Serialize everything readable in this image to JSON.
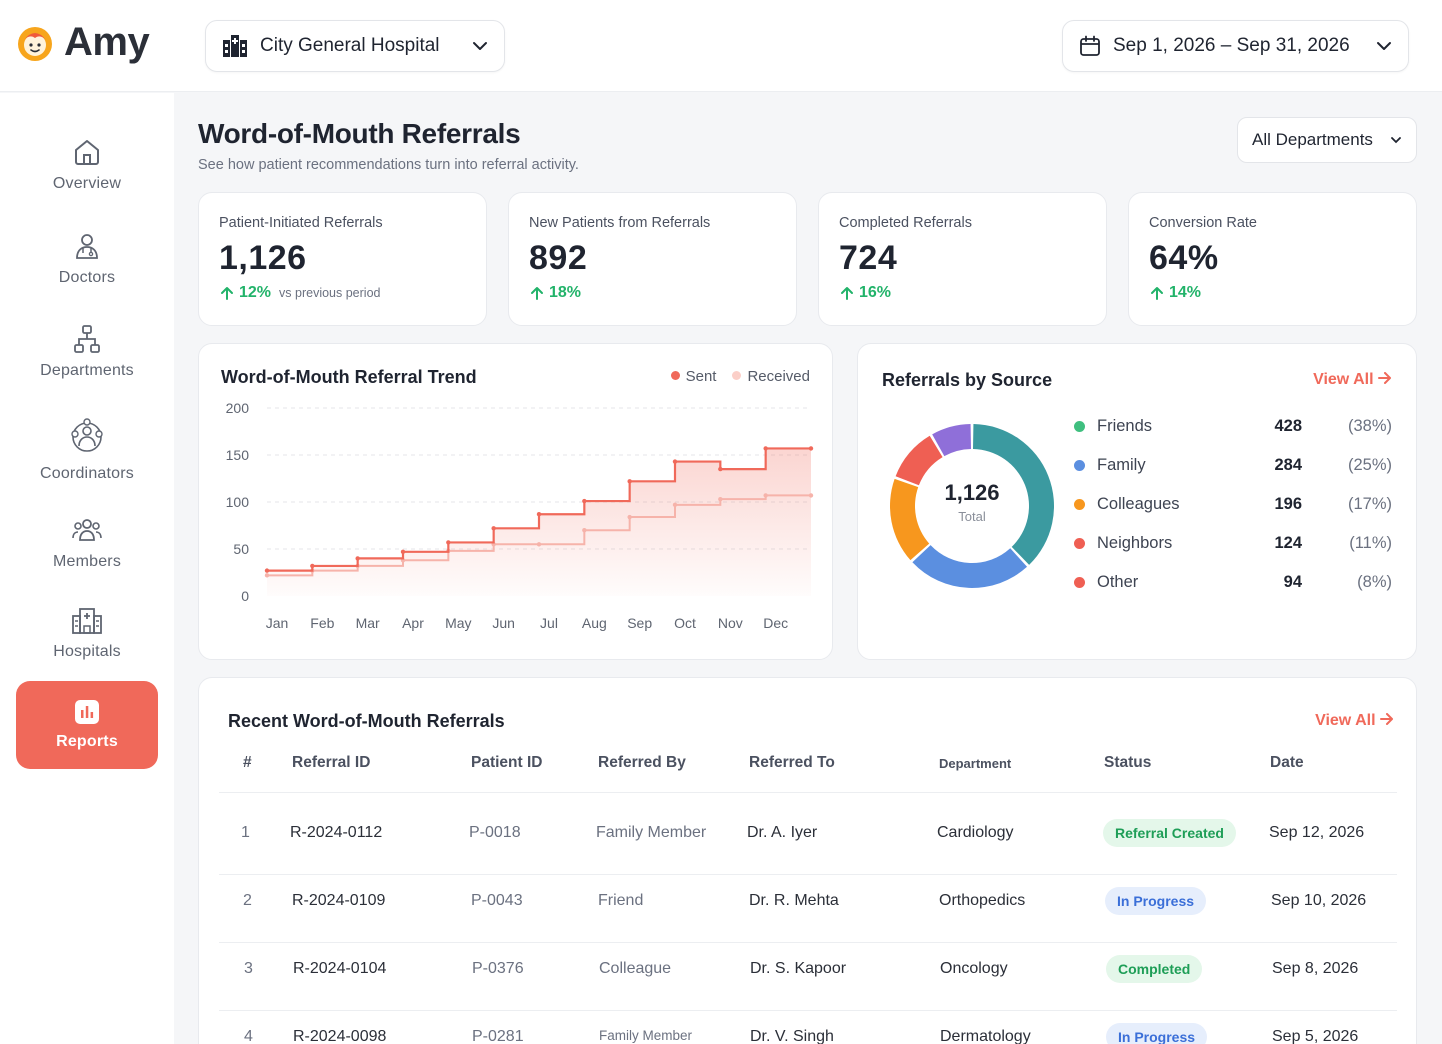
{
  "app": {
    "name": "Amy"
  },
  "header": {
    "hospital": "City General Hospital",
    "date_range": "Sep 1, 2026 – Sep 31, 2026"
  },
  "sidebar": {
    "items": [
      {
        "label": "Overview",
        "icon": "home-icon"
      },
      {
        "label": "Doctors",
        "icon": "doctor-icon"
      },
      {
        "label": "Departments",
        "icon": "org-chart-icon"
      },
      {
        "label": "Coordinators",
        "icon": "coordinators-icon"
      },
      {
        "label": "Members",
        "icon": "members-icon"
      },
      {
        "label": "Hospitals",
        "icon": "hospital-icon"
      },
      {
        "label": "Reports",
        "icon": "bar-chart-icon",
        "active": true
      }
    ]
  },
  "page": {
    "title": "Word-of-Mouth Referrals",
    "subtitle": "See how patient recommendations turn into referral activity.",
    "department_filter": "All Departments"
  },
  "kpis": [
    {
      "label": "Patient-Initiated Referrals",
      "value": "1,126",
      "delta": "12%",
      "note": "vs previous period"
    },
    {
      "label": "New Patients from Referrals",
      "value": "892",
      "delta": "18%"
    },
    {
      "label": "Completed Referrals",
      "value": "724",
      "delta": "16%"
    },
    {
      "label": "Conversion Rate",
      "value": "64%",
      "delta": "14%"
    }
  ],
  "trend": {
    "title": "Word-of-Mouth Referral Trend",
    "legend_sent": "Sent",
    "legend_received": "Received"
  },
  "chart_data": {
    "type": "line",
    "title": "Word-of-Mouth Referral Trend",
    "categories": [
      "Jan",
      "Feb",
      "Mar",
      "Apr",
      "May",
      "Jun",
      "Jul",
      "Aug",
      "Sep",
      "Oct",
      "Nov",
      "Dec"
    ],
    "y_ticks": [
      "0",
      "50",
      "100",
      "150",
      "200"
    ],
    "ylim": [
      0,
      200
    ],
    "grid": true,
    "legend": "top-right",
    "series": [
      {
        "name": "Sent",
        "color": "#f0695a",
        "values": [
          27,
          32,
          40,
          47,
          57,
          72,
          87,
          101,
          122,
          143,
          135,
          157
        ]
      },
      {
        "name": "Received",
        "color": "#f6b3aa",
        "values": [
          22,
          27,
          32,
          38,
          48,
          55,
          55,
          70,
          84,
          97,
          103,
          107
        ]
      }
    ]
  },
  "sources": {
    "title": "Referrals by Source",
    "view_all": "View All",
    "total_value": "1,126",
    "total_label": "Total",
    "items": [
      {
        "name": "Friends",
        "count": "428",
        "pct": "(38%)",
        "value": 428,
        "color": "#3b9aa0",
        "dot": "#3fbf7f"
      },
      {
        "name": "Family",
        "count": "284",
        "pct": "(25%)",
        "value": 284,
        "color": "#5b8fe0",
        "dot": "#5b8fe0"
      },
      {
        "name": "Colleagues",
        "count": "196",
        "pct": "(17%)",
        "value": 196,
        "color": "#f7971e",
        "dot": "#f7971e"
      },
      {
        "name": "Neighbors",
        "count": "124",
        "pct": "(11%)",
        "value": 124,
        "color": "#ef5f53",
        "dot": "#ef5f53"
      },
      {
        "name": "Other",
        "count": "94",
        "pct": "(8%)",
        "value": 94,
        "color": "#8f6fd9",
        "dot": "#ef5f53"
      }
    ]
  },
  "recent": {
    "title": "Recent Word-of-Mouth Referrals",
    "view_all": "View All",
    "columns": [
      "#",
      "Referral ID",
      "Patient ID",
      "Referred By",
      "Referred To",
      "Department",
      "Status",
      "Date"
    ],
    "rows": [
      {
        "n": "1",
        "id": "R-2024-0112",
        "patient": "P-0018",
        "by": "Family Member",
        "to": "Dr. A. Iyer",
        "dept": "Cardiology",
        "status": "Referral Created",
        "kind": "created",
        "date": "Sep 12, 2026"
      },
      {
        "n": "2",
        "id": "R-2024-0109",
        "patient": "P-0043",
        "by": "Friend",
        "to": "Dr. R. Mehta",
        "dept": "Orthopedics",
        "status": "In Progress",
        "kind": "progress",
        "date": "Sep 10, 2026"
      },
      {
        "n": "3",
        "id": "R-2024-0104",
        "patient": "P-0376",
        "by": "Colleague",
        "to": "Dr. S. Kapoor",
        "dept": "Oncology",
        "status": "Completed",
        "kind": "completed",
        "date": "Sep 8, 2026"
      },
      {
        "n": "4",
        "id": "R-2024-0098",
        "patient": "P-0281",
        "by": "Family Member",
        "to": "Dr. V. Singh",
        "dept": "Dermatology",
        "status": "In Progress",
        "kind": "progress",
        "date": "Sep 5, 2026"
      }
    ]
  }
}
